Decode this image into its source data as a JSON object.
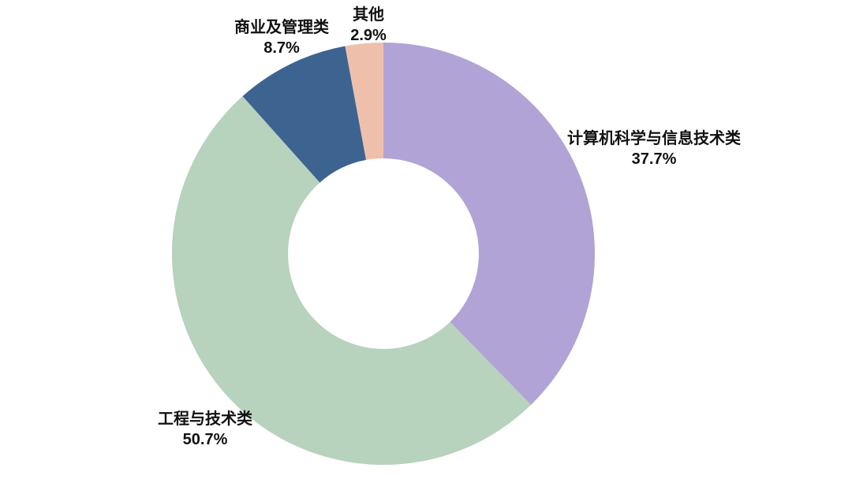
{
  "chart_data": {
    "type": "pie",
    "subtype": "donut",
    "title": "",
    "legend": "none",
    "labels_position": "outside",
    "slices": [
      {
        "label": "计算机科学与信息技术类",
        "value": 37.7,
        "pct_label": "37.7%",
        "color": "#b1a3d5"
      },
      {
        "label": "工程与技术类",
        "value": 50.7,
        "pct_label": "50.7%",
        "color": "#b7d2bd"
      },
      {
        "label": "商业及管理类",
        "value": 8.7,
        "pct_label": "8.7%",
        "color": "#3d6390"
      },
      {
        "label": "其他",
        "value": 2.9,
        "pct_label": "2.9%",
        "color": "#eec0ac"
      }
    ],
    "start_angle": "top",
    "direction": "clockwise",
    "inner_radius_ratio": 0.45,
    "background_color": "#ffffff",
    "label_text_color": "#111111"
  }
}
